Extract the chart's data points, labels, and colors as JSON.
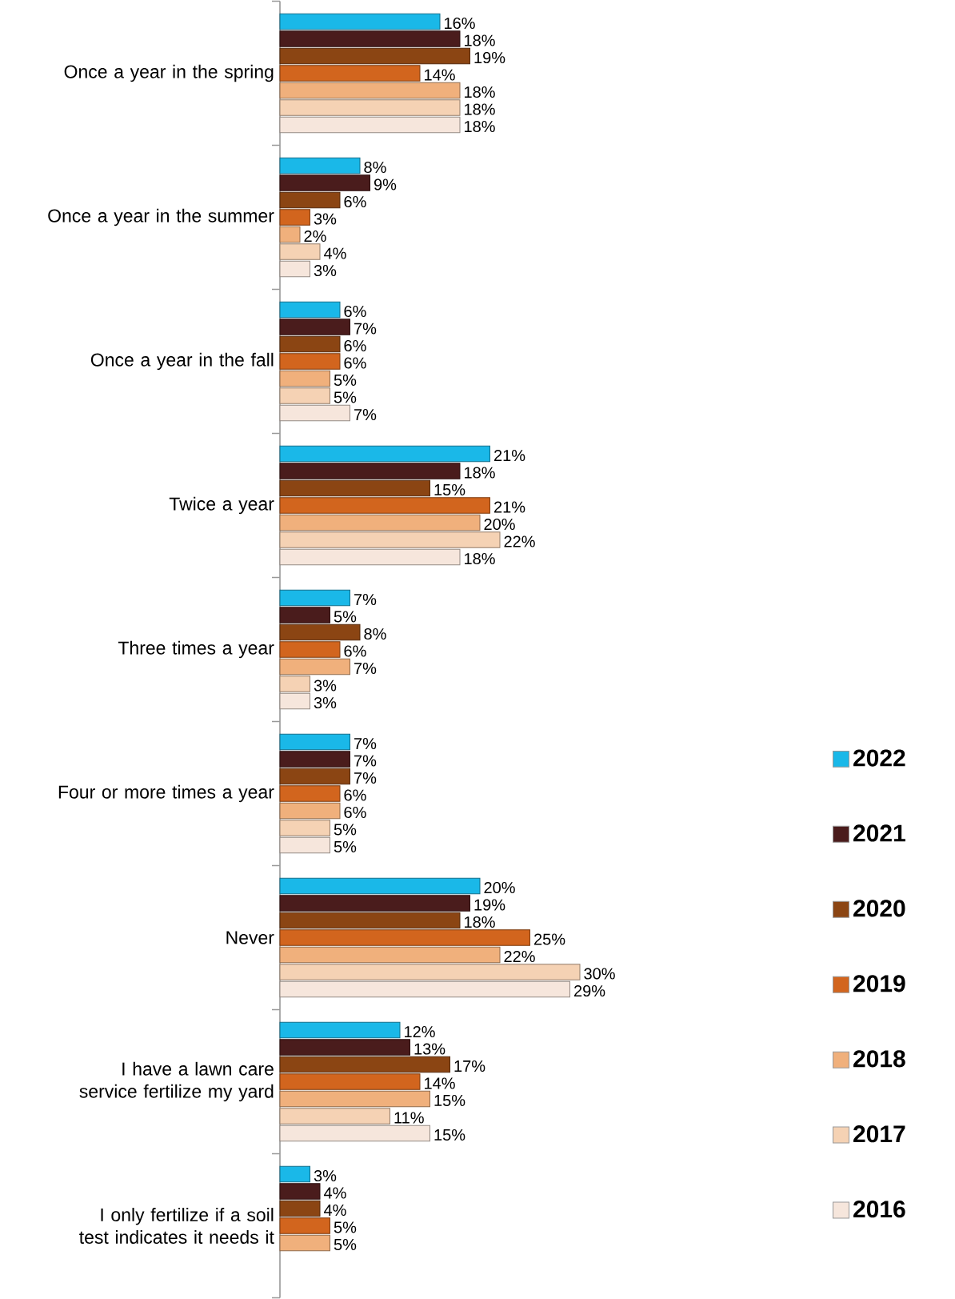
{
  "chart_data": {
    "type": "bar",
    "orientation": "horizontal",
    "legend": "bottom right",
    "categories": [
      "Once a year in the spring",
      "Once a year in the summer",
      "Once a year in the fall",
      "Twice a year",
      "Three times a year",
      "Four or more times a year",
      "Never",
      "I have a lawn care service fertilize my yard",
      "I only fertilize if a soil test indicates it needs it"
    ],
    "series": [
      {
        "name": "2022",
        "color": "#1ab8e8",
        "values": [
          16,
          8,
          6,
          21,
          7,
          7,
          20,
          12,
          3
        ],
        "value_labels": [
          "16%",
          "8%",
          "6%",
          "21%",
          "7%",
          "7%",
          "20%",
          "12%",
          "3%"
        ]
      },
      {
        "name": "2021",
        "color": "#4a1c1c",
        "values": [
          18,
          9,
          7,
          18,
          5,
          7,
          19,
          13,
          4
        ],
        "value_labels": [
          "18%",
          "9%",
          "7%",
          "18%",
          "5%",
          "7%",
          "19%",
          "13%",
          "4%"
        ]
      },
      {
        "name": "2020",
        "color": "#8b4513",
        "values": [
          19,
          6,
          6,
          15,
          8,
          7,
          18,
          17,
          4
        ],
        "value_labels": [
          "19%",
          "6%",
          "6%",
          "15%",
          "8%",
          "7%",
          "18%",
          "17%",
          "4%"
        ]
      },
      {
        "name": "2019",
        "color": "#d2651e",
        "values": [
          14,
          3,
          6,
          21,
          6,
          6,
          25,
          14,
          5
        ],
        "value_labels": [
          "14%",
          "3%",
          "6%",
          "21%",
          "6%",
          "6%",
          "25%",
          "14%",
          "5%"
        ]
      },
      {
        "name": "2018",
        "color": "#f0b07c",
        "values": [
          18,
          2,
          5,
          20,
          7,
          6,
          22,
          15,
          5
        ],
        "value_labels": [
          "18%",
          "2%",
          "5%",
          "20%",
          "7%",
          "6%",
          "22%",
          "15%",
          "5%"
        ]
      },
      {
        "name": "2017",
        "color": "#f5d2b4",
        "values": [
          18,
          4,
          5,
          22,
          3,
          5,
          30,
          11,
          null
        ],
        "value_labels": [
          "18%",
          "4%",
          "5%",
          "22%",
          "3%",
          "5%",
          "30%",
          "11%",
          null
        ]
      },
      {
        "name": "2016",
        "color": "#f6e6dc",
        "values": [
          18,
          3,
          7,
          18,
          3,
          5,
          29,
          15,
          null
        ],
        "value_labels": [
          "18%",
          "3%",
          "7%",
          "18%",
          "3%",
          "5%",
          "29%",
          "15%",
          null
        ]
      }
    ]
  }
}
